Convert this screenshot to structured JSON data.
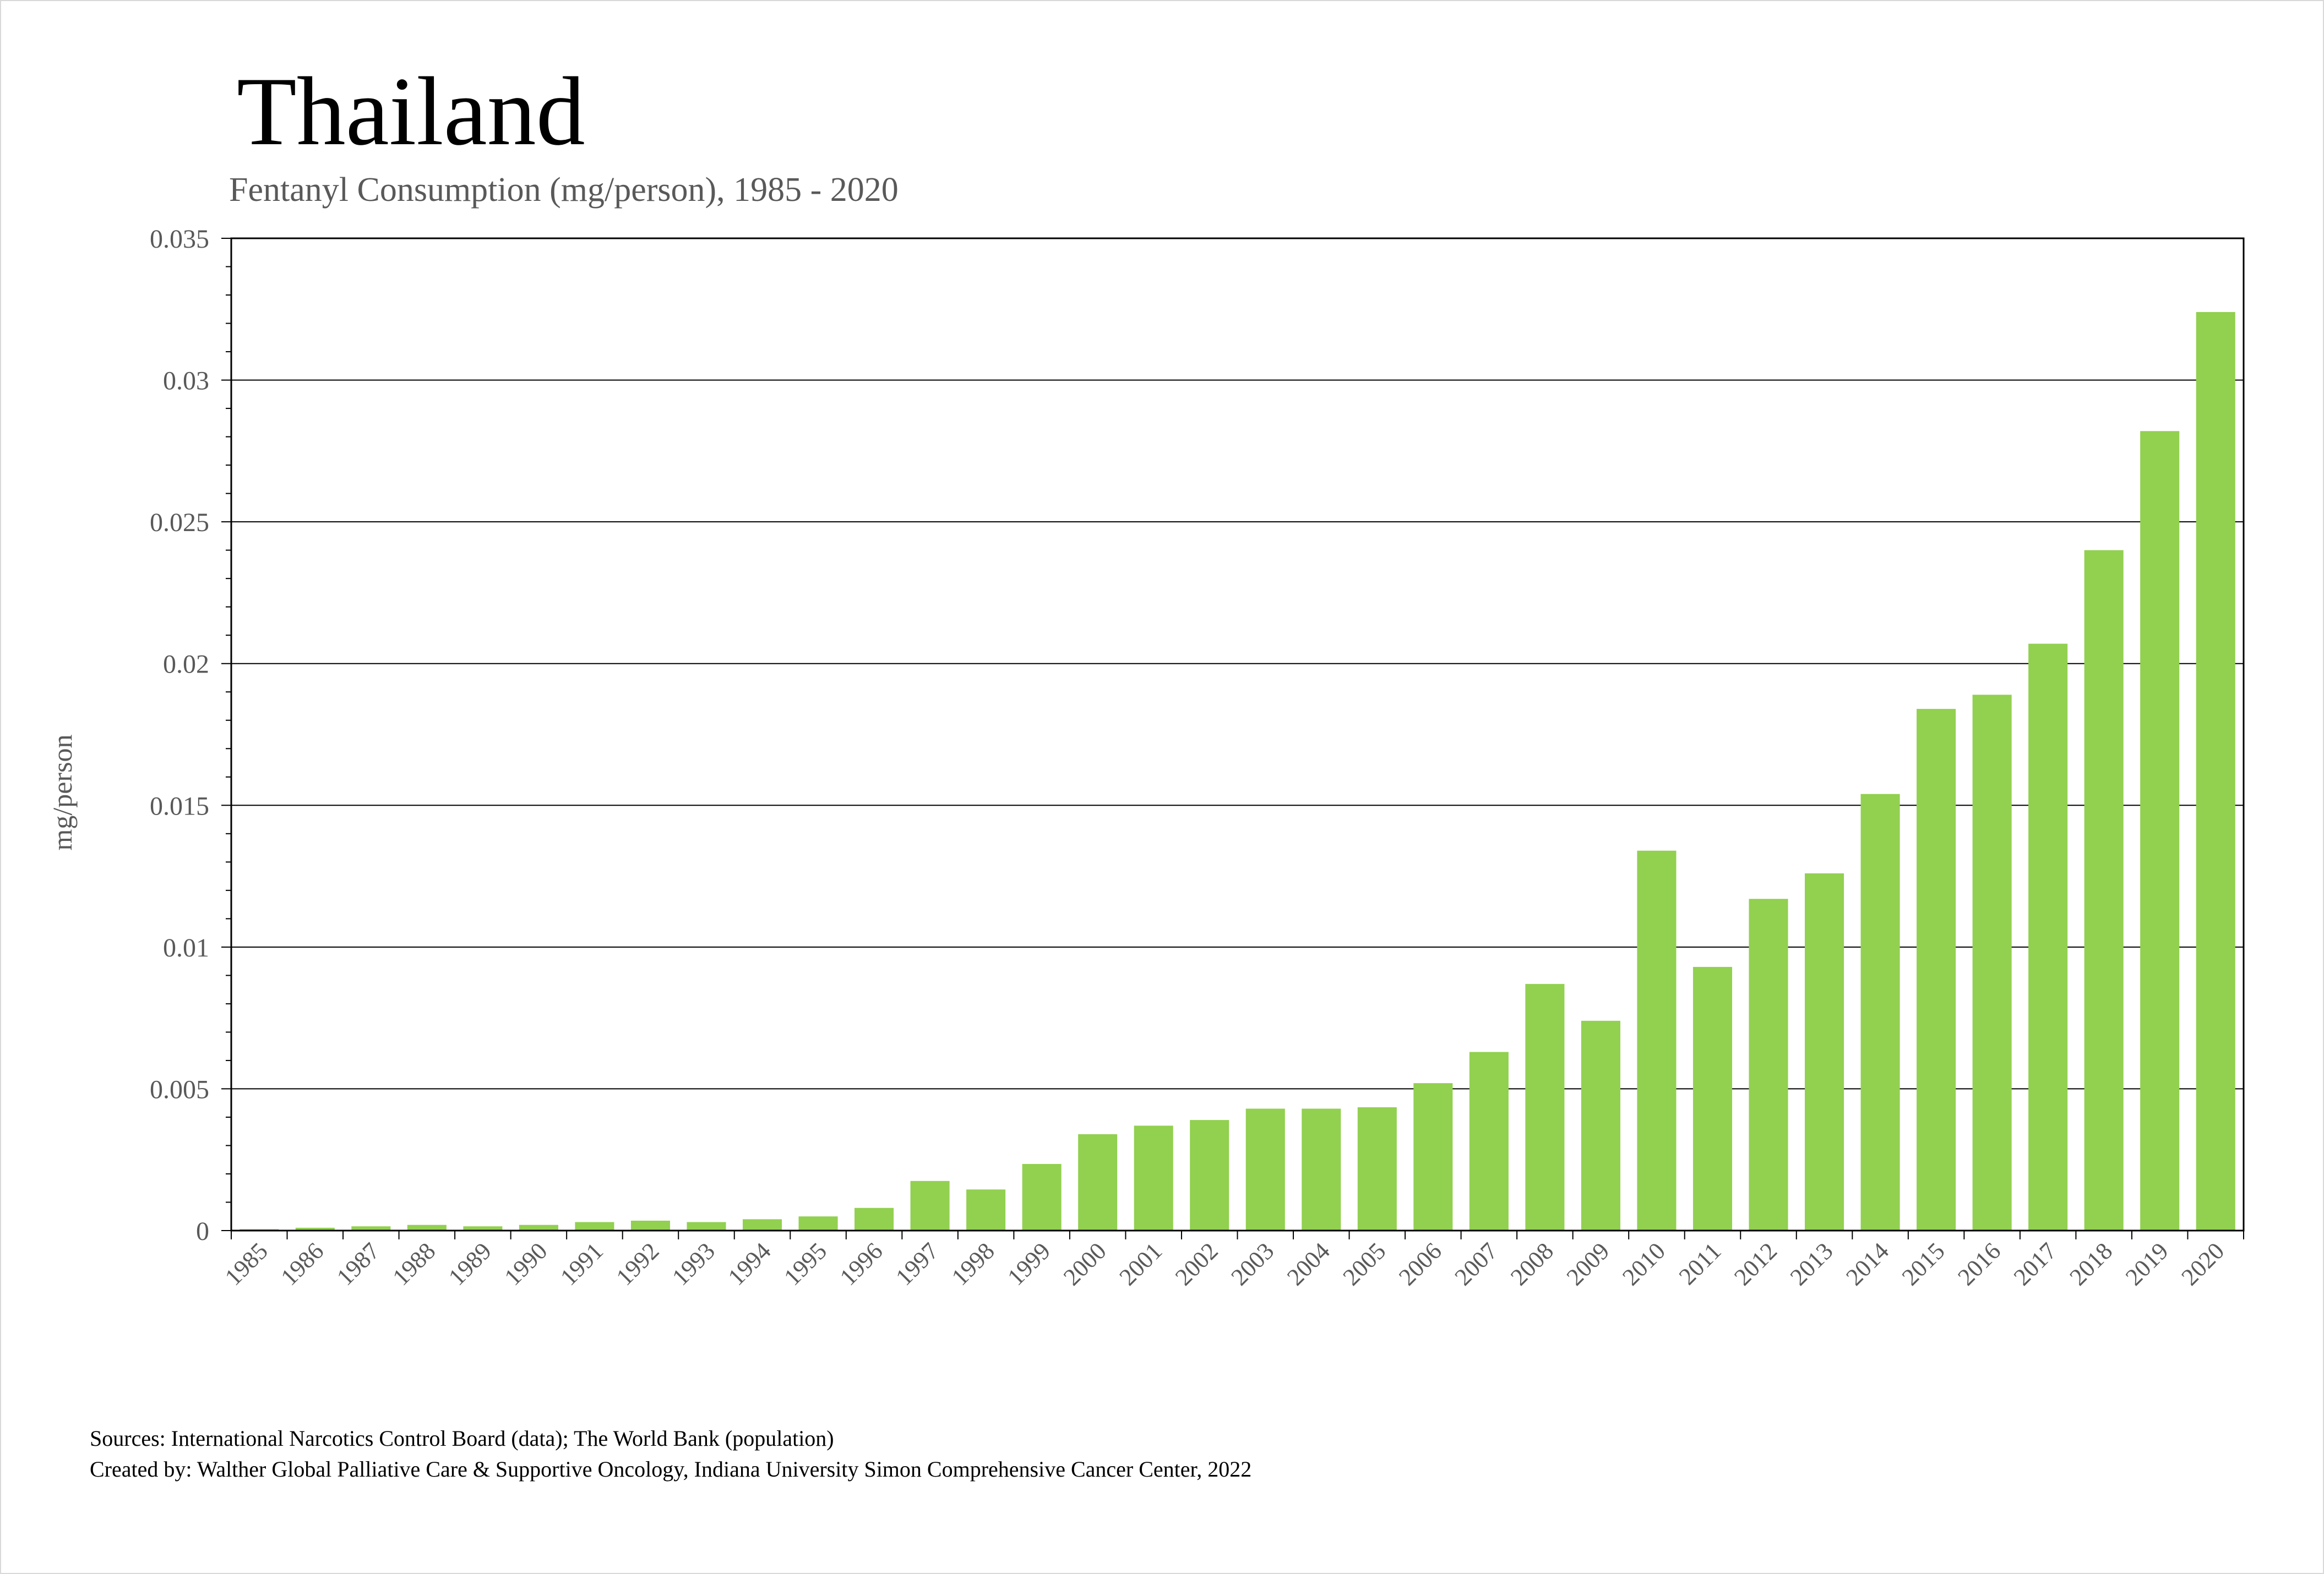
{
  "chart_data": {
    "type": "bar",
    "title": "Thailand",
    "subtitle": "Fentanyl Consumption (mg/person), 1985 - 2020",
    "ylabel": "mg/person",
    "xlabel": "",
    "ylim": [
      0,
      0.035
    ],
    "yticks": [
      "0",
      "0.005",
      "0.01",
      "0.015",
      "0.02",
      "0.025",
      "0.03",
      "0.035"
    ],
    "grid": true,
    "legend": "none",
    "bar_color": "#92d050",
    "categories": [
      "1985",
      "1986",
      "1987",
      "1988",
      "1989",
      "1990",
      "1991",
      "1992",
      "1993",
      "1994",
      "1995",
      "1996",
      "1997",
      "1998",
      "1999",
      "2000",
      "2001",
      "2002",
      "2003",
      "2004",
      "2005",
      "2006",
      "2007",
      "2008",
      "2009",
      "2010",
      "2011",
      "2012",
      "2013",
      "2014",
      "2015",
      "2016",
      "2017",
      "2018",
      "2019",
      "2020"
    ],
    "values": [
      5e-05,
      0.0001,
      0.00015,
      0.0002,
      0.00015,
      0.0002,
      0.0003,
      0.00035,
      0.0003,
      0.0004,
      0.0005,
      0.0008,
      0.00175,
      0.00145,
      0.00235,
      0.0034,
      0.0037,
      0.0039,
      0.0043,
      0.0043,
      0.00435,
      0.0052,
      0.0063,
      0.0087,
      0.0074,
      0.0134,
      0.0093,
      0.0117,
      0.0126,
      0.0154,
      0.0184,
      0.0189,
      0.0207,
      0.024,
      0.0282,
      0.0324
    ]
  },
  "footer": {
    "sources": "Sources: International Narcotics Control Board (data); The World Bank (population)",
    "created_by": "Created by: Walther Global Palliative Care & Supportive Oncology, Indiana University Simon Comprehensive Cancer Center, 2022"
  }
}
